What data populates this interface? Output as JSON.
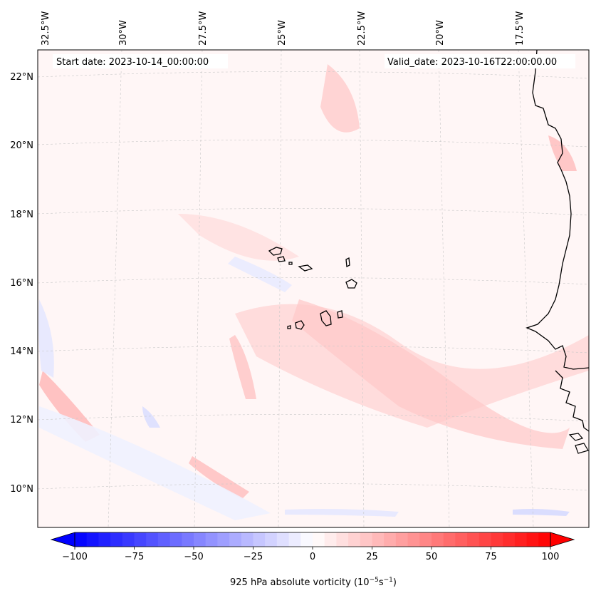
{
  "map": {
    "start_date": "Start date: 2023-10-14_00:00:00",
    "valid_date": "Valid_date: 2023-10-16T22:00:00.00",
    "lon_labels": [
      "32.5°W",
      "30°W",
      "27.5°W",
      "25°W",
      "22.5°W",
      "20°W",
      "17.5°W"
    ],
    "lat_labels": [
      "22°N",
      "20°N",
      "18°N",
      "16°N",
      "14°N",
      "12°N",
      "10°N"
    ],
    "features": [
      "coastline-west-africa",
      "cape-verde-islands"
    ]
  },
  "colorbar": {
    "label": "925 hPa absolute vorticity (10",
    "label_exp1": "−5",
    "label_mid": "s",
    "label_exp2": "−1",
    "label_end": ")",
    "ticks": [
      "−100",
      "−75",
      "−50",
      "−25",
      "0",
      "25",
      "50",
      "75",
      "100"
    ],
    "tick_values": [
      -100,
      -75,
      -50,
      -25,
      0,
      25,
      50,
      75,
      100
    ],
    "min": -100,
    "max": 100,
    "step": 5,
    "colormap": "bwr",
    "extend": "both"
  }
}
